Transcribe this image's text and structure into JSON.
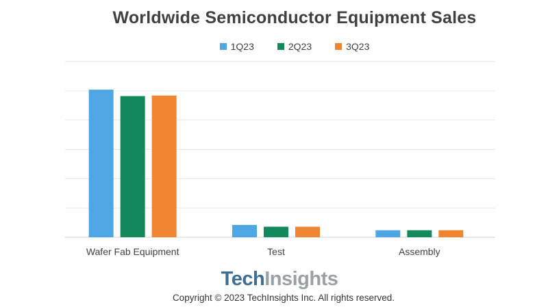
{
  "chart_data": {
    "type": "bar",
    "title": "Worldwide Semiconductor Equipment Sales",
    "categories": [
      "Wafer Fab Equipment",
      "Test",
      "Assembly"
    ],
    "series": [
      {
        "name": "1Q23",
        "color": "#4ea6e4",
        "values": [
          25.2,
          2.1,
          1.2
        ]
      },
      {
        "name": "2Q23",
        "color": "#138a5e",
        "values": [
          24.1,
          1.8,
          1.2
        ]
      },
      {
        "name": "3Q23",
        "color": "#ef8431",
        "values": [
          24.2,
          1.8,
          1.2
        ]
      }
    ],
    "ylim": [
      0,
      30
    ],
    "grid": true,
    "legend_position": "top"
  },
  "brand": {
    "tech": "Tech",
    "insights": "Insights"
  },
  "copyright": "Copyright © 2023 TechInsights Inc.  All rights reserved."
}
